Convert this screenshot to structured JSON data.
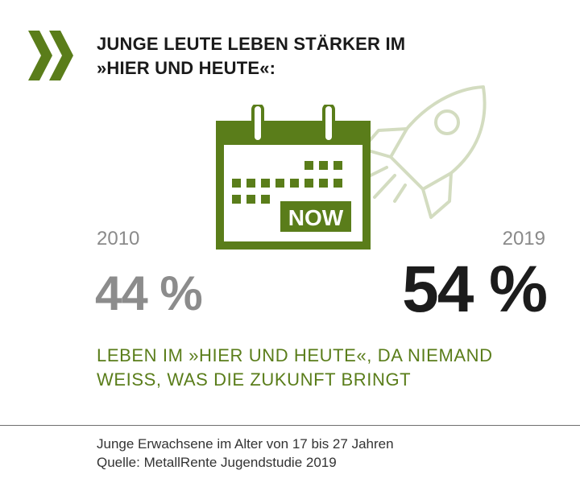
{
  "header": {
    "title_line1": "JUNGE LEUTE LEBEN STÄRKER IM",
    "title_line2": "»HIER UND HEUTE«:"
  },
  "icons": {
    "bullet": "double-chevron-icon",
    "calendar": "calendar-icon",
    "rocket": "rocket-icon"
  },
  "calendar": {
    "label": "NOW"
  },
  "stats": {
    "left": {
      "year": "2010",
      "value": "44 %"
    },
    "right": {
      "year": "2019",
      "value": "54 %"
    }
  },
  "statement": {
    "line1": "LEBEN IM »HIER UND HEUTE«, DA NIEMAND",
    "line2": "WEISS, WAS DIE ZUKUNFT BRINGT"
  },
  "footer": {
    "line1": "Junge Erwachsene im Alter von 17 bis 27 Jahren",
    "line2": "Quelle: MetallRente Jugendstudie 2019"
  },
  "colors": {
    "green": "#5a7d1a",
    "light_green": "#d3dcc0",
    "grey": "#8c8c8c",
    "dark": "#1c1c1c"
  }
}
